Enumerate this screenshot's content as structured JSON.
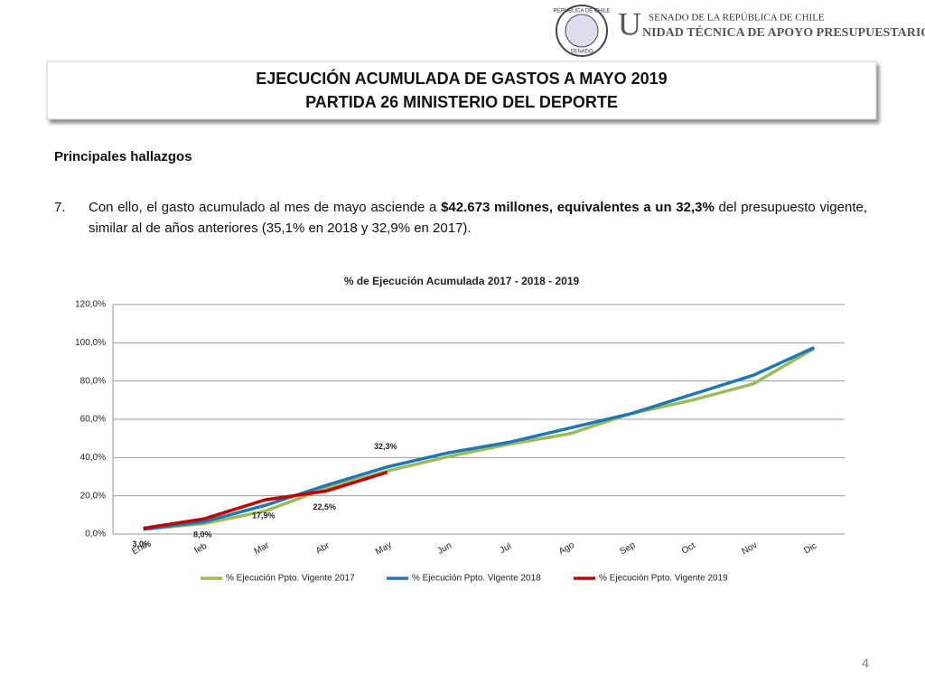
{
  "header": {
    "seal_top": "REPÚBLICA DE CHILE",
    "seal_bottom": "SENADO",
    "org_line1": "SENADO DE LA REPÚBLICA DE CHILE",
    "org_initial": "U",
    "org_line2": "NIDAD TÉCNICA DE APOYO PRESUPUESTARIO"
  },
  "title_lines": [
    "EJECUCIÓN ACUMULADA DE GASTOS A MAYO 2019",
    "PARTIDA 26 MINISTERIO DEL DEPORTE"
  ],
  "section": "Principales hallazgos",
  "item": {
    "number": "7.",
    "text_1": "Con ello, el gasto acumulado al mes de mayo asciende a ",
    "bold": "$42.673 millones, equivalentes a un 32,3%",
    "text_2": " del presupuesto vigente, similar al de años anteriores (35,1% en 2018 y 32,9% en 2017)."
  },
  "page_number": "4",
  "chart_data": {
    "type": "line",
    "title": "% de Ejecución Acumulada 2017 - 2018 - 2019",
    "categories": [
      "Ene",
      "feb",
      "Mar",
      "Abr",
      "May",
      "Jun",
      "Jul",
      "Ago",
      "Sep",
      "Oct",
      "Nov",
      "Dic"
    ],
    "ylim": [
      0,
      120
    ],
    "yticks": [
      {
        "value": 0,
        "label": "0,0%"
      },
      {
        "value": 20,
        "label": "20,0%"
      },
      {
        "value": 40,
        "label": "40,0%"
      },
      {
        "value": 60,
        "label": "60,0%"
      },
      {
        "value": 80,
        "label": "80,0%"
      },
      {
        "value": 100,
        "label": "100,0%"
      },
      {
        "value": 120,
        "label": "120,0%"
      }
    ],
    "grid": true,
    "legend": "bottom",
    "series": [
      {
        "name": "% Ejecución Ppto. Vigente 2017",
        "color": "#9bbb59",
        "values": [
          2.5,
          5.5,
          12,
          24,
          33,
          40.5,
          47,
          52.5,
          63,
          70,
          78.5,
          97
        ]
      },
      {
        "name": "% Ejecución Ppto. Vigente 2018",
        "color": "#1f77b4",
        "values": [
          2.5,
          6.5,
          15,
          25.5,
          35.1,
          42.5,
          48,
          55.5,
          63,
          73,
          83,
          97.5
        ]
      },
      {
        "name": "% Ejecución Ppto. Vigente 2019",
        "color": "#c00000",
        "values": [
          3.0,
          8.0,
          17.9,
          22.5,
          32.3,
          null,
          null,
          null,
          null,
          null,
          null,
          null
        ],
        "value_labels": [
          "3,0%",
          "8,0%",
          "17,9%",
          "22,5%",
          "32,3%",
          null,
          null,
          null,
          null,
          null,
          null,
          null
        ]
      }
    ]
  }
}
